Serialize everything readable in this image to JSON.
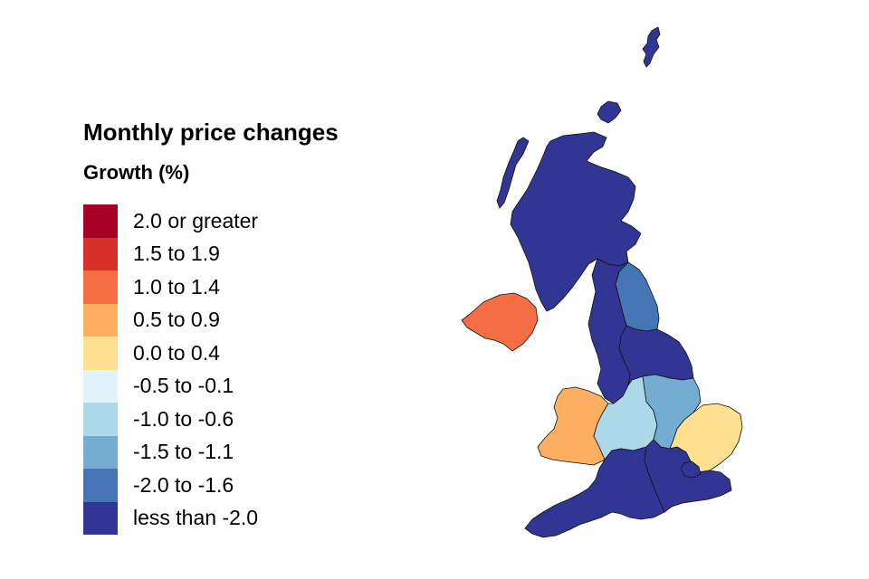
{
  "legend": {
    "title": "Monthly price changes",
    "subtitle": "Growth (%)",
    "classes": [
      {
        "label": "2.0 or greater",
        "color": "#a50026"
      },
      {
        "label": "1.5 to 1.9",
        "color": "#d73027"
      },
      {
        "label": "1.0 to 1.4",
        "color": "#f46d43"
      },
      {
        "label": "0.5 to 0.9",
        "color": "#fdae61"
      },
      {
        "label": "0.0 to 0.4",
        "color": "#fee090"
      },
      {
        "label": "-0.5 to -0.1",
        "color": "#e0f3f8"
      },
      {
        "label": "-1.0 to -0.6",
        "color": "#abd9e9"
      },
      {
        "label": "-1.5 to -1.1",
        "color": "#74add1"
      },
      {
        "label": "-2.0 to -1.6",
        "color": "#4575b4"
      },
      {
        "label": "less than -2.0",
        "color": "#313695"
      }
    ]
  },
  "map": {
    "regions": [
      {
        "id": "scotland",
        "class_index": 9
      },
      {
        "id": "northern-ireland",
        "class_index": 2
      },
      {
        "id": "north-east",
        "class_index": 8
      },
      {
        "id": "north-west",
        "class_index": 9
      },
      {
        "id": "yorkshire-and-the-humber",
        "class_index": 9
      },
      {
        "id": "wales",
        "class_index": 3
      },
      {
        "id": "west-midlands",
        "class_index": 6
      },
      {
        "id": "east-midlands",
        "class_index": 7
      },
      {
        "id": "east-of-england",
        "class_index": 4
      },
      {
        "id": "south-west",
        "class_index": 9
      },
      {
        "id": "south-east",
        "class_index": 9
      },
      {
        "id": "london",
        "class_index": 9
      },
      {
        "id": "shetland",
        "class_index": 9
      },
      {
        "id": "orkney",
        "class_index": 9
      },
      {
        "id": "outer-hebrides",
        "class_index": 9
      }
    ]
  }
}
